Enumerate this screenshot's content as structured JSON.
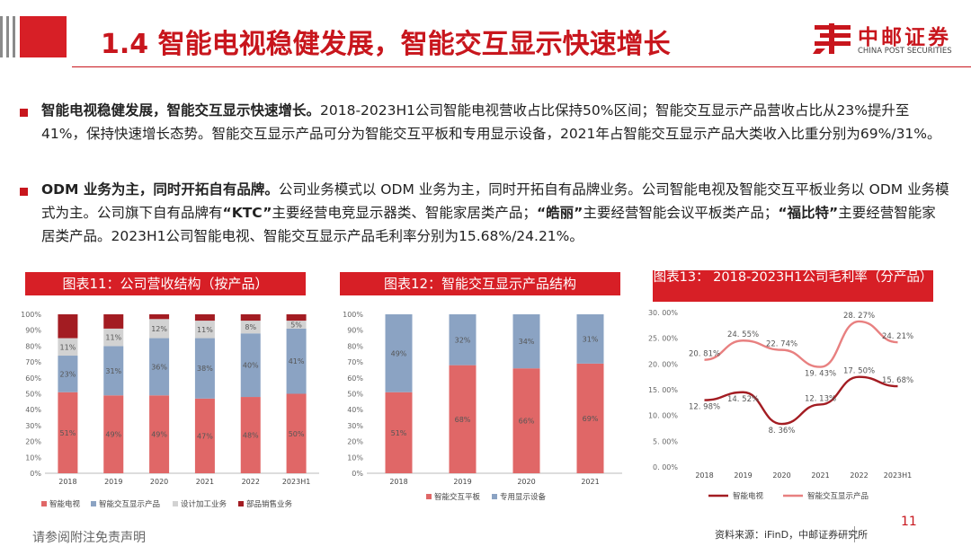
{
  "header": {
    "title": "1.4 智能电视稳健发展，智能交互显示快速增长",
    "logo_cn": "中邮证券",
    "logo_en": "CHINA POST SECURITIES"
  },
  "paragraphs": [
    {
      "bold": "智能电视稳健发展，智能交互显示快速增长。",
      "text": "2018-2023H1公司智能电视营收占比保持50%区间；智能交互显示产品营收占比从23%提升至41%，保持快速增长态势。智能交互显示产品可分为智能交互平板和专用显示设备，2021年占智能交互显示产品大类收入比重分别为69%/31%。"
    },
    {
      "bold": "ODM 业务为主，同时开拓自有品牌。",
      "text1": "公司业务模式以 ODM 业务为主，同时开拓自有品牌业务。公司智能电视及智能交互平板业务以 ODM 业务模式为主。公司旗下自有品牌有",
      "q1": "“KTC”",
      "text2": "主要经营电竞显示器类、智能家居类产品；",
      "q2": "“皓丽”",
      "text3": "主要经营智能会议平板类产品；",
      "q3": "“福比特”",
      "text4": "主要经营智能家居类产品。2023H1公司智能电视、智能交互显示产品毛利率分别为15.68%/24.21%。"
    }
  ],
  "charts": {
    "c1_title": "图表11：公司营收结构（按产品）",
    "c2_title": "图表12：智能交互显示产品结构",
    "c3_title": "图表13：  2018-2023H1公司毛利率（分产品）"
  },
  "chart_data": [
    {
      "type": "bar",
      "stacked": true,
      "title": "图表11：公司营收结构（按产品）",
      "categories": [
        "2018",
        "2019",
        "2020",
        "2021",
        "2022",
        "2023H1"
      ],
      "ylim": [
        0,
        100
      ],
      "yticks": [
        "0%",
        "10%",
        "20%",
        "30%",
        "40%",
        "50%",
        "60%",
        "70%",
        "80%",
        "90%",
        "100%"
      ],
      "series": [
        {
          "name": "智能电视",
          "color": "#e06767",
          "values": [
            51,
            49,
            49,
            47,
            48,
            50
          ],
          "labels": [
            "51%",
            "49%",
            "49%",
            "47%",
            "48%",
            "50%"
          ]
        },
        {
          "name": "智能交互显示产品",
          "color": "#8ba3c3",
          "values": [
            23,
            31,
            36,
            38,
            40,
            41
          ],
          "labels": [
            "23%",
            "31%",
            "36%",
            "38%",
            "40%",
            "41%"
          ]
        },
        {
          "name": "设计加工业务",
          "color": "#d2d2d2",
          "values": [
            11,
            11,
            12,
            11,
            8,
            5
          ],
          "labels": [
            "11%",
            "11%",
            "12%",
            "11%",
            "8%",
            "5%"
          ]
        },
        {
          "name": "部品销售业务",
          "color": "#a31c22",
          "values": [
            15,
            9,
            3,
            4,
            4,
            4
          ],
          "labels": [
            "",
            "",
            "",
            "",
            "",
            ""
          ]
        }
      ]
    },
    {
      "type": "bar",
      "stacked": true,
      "title": "图表12：智能交互显示产品结构",
      "categories": [
        "2018",
        "2019",
        "2020",
        "2021"
      ],
      "ylim": [
        0,
        100
      ],
      "yticks": [
        "0%",
        "10%",
        "20%",
        "30%",
        "40%",
        "50%",
        "60%",
        "70%",
        "80%",
        "90%",
        "100%"
      ],
      "series": [
        {
          "name": "智能交互平板",
          "color": "#e06767",
          "values": [
            51,
            68,
            66,
            69
          ],
          "labels": [
            "51%",
            "68%",
            "66%",
            "69%"
          ]
        },
        {
          "name": "专用显示设备",
          "color": "#8ba3c3",
          "values": [
            49,
            32,
            34,
            31
          ],
          "labels": [
            "49%",
            "32%",
            "34%",
            "31%"
          ]
        }
      ]
    },
    {
      "type": "line",
      "title": "图表13：  2018-2023H1公司毛利率（分产品）",
      "categories": [
        "2018",
        "2019",
        "2020",
        "2021",
        "2022",
        "2023H1"
      ],
      "ylim": [
        0,
        30
      ],
      "yticks": [
        "0. 00%",
        "5. 00%",
        "10. 00%",
        "15. 00%",
        "20. 00%",
        "25. 00%",
        "30. 00%"
      ],
      "series": [
        {
          "name": "智能电视",
          "color": "#a31c22",
          "values": [
            12.98,
            14.52,
            8.36,
            12.13,
            17.5,
            15.68
          ],
          "labels": [
            "12. 98%",
            "14. 52%",
            "8. 36%",
            "12. 13%",
            "17. 50%",
            "15. 68%"
          ]
        },
        {
          "name": "智能交互显示产品",
          "color": "#e88080",
          "values": [
            20.81,
            24.55,
            22.74,
            19.43,
            28.27,
            24.21
          ],
          "labels": [
            "20. 81%",
            "24. 55%",
            "22. 74%",
            "19. 43%",
            "28. 27%",
            "24. 21%"
          ]
        }
      ]
    }
  ],
  "footer": {
    "disclaimer": "请参阅附注免责声明",
    "source": "资料来源：iFinD，中邮证券研究所",
    "page": "11"
  }
}
